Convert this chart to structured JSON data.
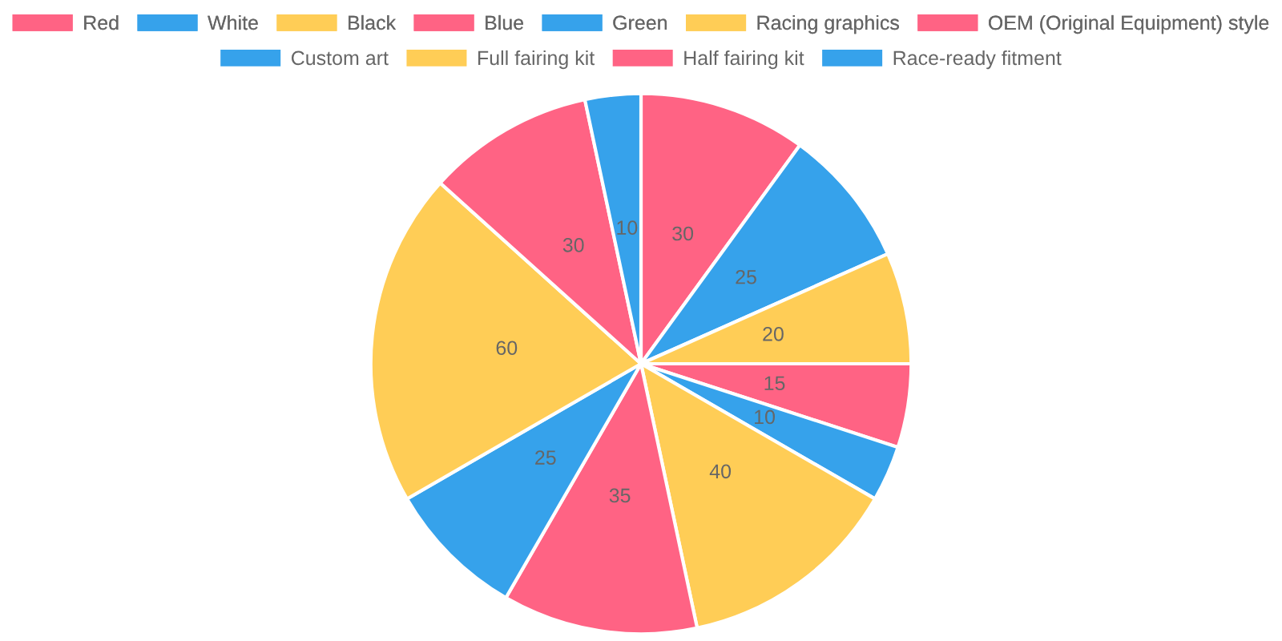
{
  "chart_data": {
    "type": "pie",
    "categories": [
      "Red",
      "White",
      "Black",
      "Blue",
      "Green",
      "Racing graphics",
      "OEM (Original Equipment) style",
      "Custom art",
      "Full fairing kit",
      "Half fairing kit",
      "Race-ready fitment"
    ],
    "values": [
      30,
      25,
      20,
      15,
      10,
      40,
      35,
      25,
      60,
      30,
      10
    ],
    "colors": [
      "#ff6384",
      "#36a2eb",
      "#ffcd56",
      "#ff6384",
      "#36a2eb",
      "#ffcd56",
      "#ff6384",
      "#36a2eb",
      "#ffcd56",
      "#ff6384",
      "#36a2eb"
    ],
    "data_labels": true,
    "legend": "top"
  }
}
